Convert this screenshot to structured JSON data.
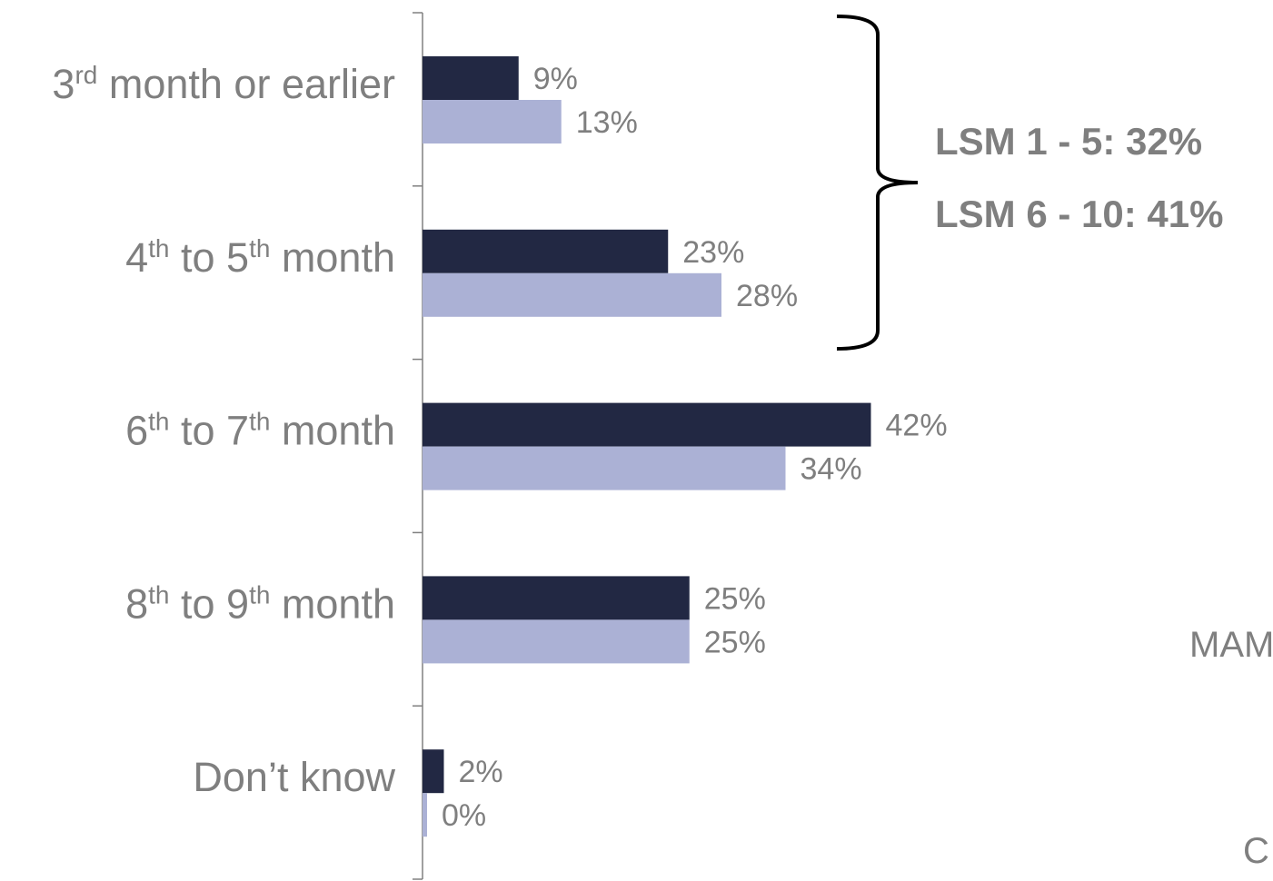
{
  "chart_data": {
    "type": "bar",
    "orientation": "horizontal",
    "categories": [
      {
        "base": "3",
        "sup": "rd",
        "rest": "  month or earlier"
      },
      {
        "base": "4",
        "sup": "th",
        "rest": " to 5",
        "sup2": "th",
        "rest2": " month"
      },
      {
        "base": "6",
        "sup": "th",
        "rest": " to 7",
        "sup2": "th",
        "rest2": " month"
      },
      {
        "base": "8",
        "sup": "th",
        "rest": " to 9",
        "sup2": "th",
        "rest2": " month"
      },
      {
        "base": "Don’t know"
      }
    ],
    "series": [
      {
        "color": "#222843",
        "values": [
          9,
          23,
          42,
          25,
          2
        ],
        "labels": [
          "9%",
          "23%",
          "42%",
          "25%",
          "2%"
        ]
      },
      {
        "color": "#abb1d5",
        "values": [
          13,
          28,
          34,
          25,
          0
        ],
        "labels": [
          "13%",
          "28%",
          "34%",
          "25%",
          "0%"
        ]
      }
    ],
    "xlim": [
      0,
      100
    ],
    "grid": false,
    "legend": "none",
    "annotation": {
      "bracket_spans": [
        0,
        1
      ],
      "lines": [
        "LSM 1 - 5: 32%",
        "LSM 6 - 10: 41%"
      ]
    }
  },
  "edge_text": [
    "MAM",
    "C"
  ]
}
